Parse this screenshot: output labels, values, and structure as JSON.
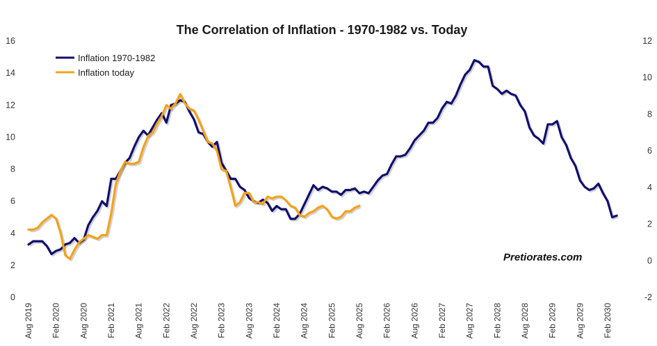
{
  "chart_data": {
    "type": "line",
    "title": "The Correlation of Inflation - 1970-1982 vs. Today",
    "watermark": "Pretiorates.com",
    "x_labels": [
      "Aug 2019",
      "Feb 2020",
      "Aug 2020",
      "Feb 2021",
      "Aug 2021",
      "Feb 2022",
      "Aug 2022",
      "Feb 2023",
      "Aug 2023",
      "Feb 2024",
      "Aug 2024",
      "Feb 2025",
      "Aug 2025",
      "Feb 2026",
      "Aug 2026",
      "Feb 2027",
      "Aug 2027",
      "Feb 2028",
      "Aug 2028",
      "Feb 2029",
      "Aug 2029",
      "Feb 2030"
    ],
    "x_label_months": [
      0,
      6,
      12,
      18,
      24,
      30,
      36,
      42,
      48,
      54,
      60,
      66,
      72,
      78,
      84,
      90,
      96,
      102,
      108,
      114,
      120,
      126
    ],
    "x_range_months": [
      0,
      131
    ],
    "y_left": {
      "min": 0,
      "max": 16,
      "ticks": [
        "0",
        "2",
        "4",
        "6",
        "8",
        "10",
        "12",
        "14",
        "16"
      ],
      "tick_values": [
        0,
        2,
        4,
        6,
        8,
        10,
        12,
        14,
        16
      ]
    },
    "y_right": {
      "min": -2,
      "max": 12,
      "ticks": [
        "-2",
        "0",
        "2",
        "4",
        "6",
        "8",
        "10",
        "12"
      ],
      "tick_values": [
        -2,
        0,
        2,
        4,
        6,
        8,
        10,
        12
      ]
    },
    "legend": {
      "position": "top-left"
    },
    "series": [
      {
        "name": "Inflation 1970-1982",
        "axis": "left",
        "color": "#0f0f6e",
        "points": [
          [
            0,
            3.3
          ],
          [
            1,
            3.5
          ],
          [
            2,
            3.5
          ],
          [
            3,
            3.5
          ],
          [
            4,
            3.2
          ],
          [
            5,
            2.7
          ],
          [
            6,
            2.9
          ],
          [
            7,
            3.0
          ],
          [
            8,
            3.3
          ],
          [
            9,
            3.4
          ],
          [
            10,
            3.7
          ],
          [
            11,
            3.4
          ],
          [
            12,
            3.6
          ],
          [
            13,
            4.5
          ],
          [
            14,
            5.0
          ],
          [
            15,
            5.4
          ],
          [
            16,
            6.0
          ],
          [
            17,
            5.7
          ],
          [
            18,
            7.4
          ],
          [
            19,
            7.4
          ],
          [
            20,
            7.9
          ],
          [
            21,
            8.4
          ],
          [
            22,
            8.7
          ],
          [
            23,
            9.4
          ],
          [
            24,
            10.0
          ],
          [
            25,
            10.4
          ],
          [
            26,
            10.1
          ],
          [
            27,
            10.6
          ],
          [
            28,
            11.1
          ],
          [
            29,
            11.5
          ],
          [
            30,
            10.9
          ],
          [
            31,
            12.0
          ],
          [
            32,
            12.1
          ],
          [
            33,
            12.3
          ],
          [
            34,
            12.2
          ],
          [
            35,
            11.6
          ],
          [
            36,
            11.1
          ],
          [
            37,
            10.3
          ],
          [
            38,
            10.2
          ],
          [
            39,
            9.7
          ],
          [
            40,
            9.4
          ],
          [
            41,
            9.7
          ],
          [
            42,
            8.4
          ],
          [
            43,
            7.9
          ],
          [
            44,
            7.4
          ],
          [
            45,
            7.4
          ],
          [
            46,
            6.9
          ],
          [
            47,
            6.7
          ],
          [
            48,
            6.2
          ],
          [
            49,
            6.0
          ],
          [
            50,
            5.9
          ],
          [
            51,
            6.1
          ],
          [
            52,
            5.9
          ],
          [
            53,
            5.4
          ],
          [
            54,
            5.7
          ],
          [
            55,
            5.5
          ],
          [
            56,
            5.5
          ],
          [
            57,
            4.9
          ],
          [
            58,
            4.9
          ],
          [
            59,
            5.2
          ],
          [
            60,
            5.8
          ],
          [
            61,
            6.4
          ],
          [
            62,
            7.0
          ],
          [
            63,
            6.7
          ],
          [
            64,
            6.9
          ],
          [
            65,
            6.8
          ],
          [
            66,
            6.6
          ],
          [
            67,
            6.6
          ],
          [
            68,
            6.4
          ],
          [
            69,
            6.7
          ],
          [
            70,
            6.7
          ],
          [
            71,
            6.8
          ],
          [
            72,
            6.5
          ],
          [
            73,
            6.6
          ],
          [
            74,
            6.5
          ],
          [
            75,
            6.9
          ],
          [
            76,
            7.3
          ],
          [
            77,
            7.6
          ],
          [
            78,
            7.7
          ],
          [
            79,
            8.3
          ],
          [
            80,
            8.8
          ],
          [
            81,
            8.8
          ],
          [
            82,
            8.9
          ],
          [
            83,
            9.3
          ],
          [
            84,
            9.8
          ],
          [
            85,
            10.1
          ],
          [
            86,
            10.4
          ],
          [
            87,
            10.9
          ],
          [
            88,
            10.9
          ],
          [
            89,
            11.2
          ],
          [
            90,
            11.8
          ],
          [
            91,
            12.2
          ],
          [
            92,
            12.1
          ],
          [
            93,
            12.6
          ],
          [
            94,
            13.3
          ],
          [
            95,
            13.9
          ],
          [
            96,
            14.2
          ],
          [
            97,
            14.8
          ],
          [
            98,
            14.7
          ],
          [
            99,
            14.4
          ],
          [
            100,
            14.4
          ],
          [
            101,
            13.2
          ],
          [
            102,
            13.0
          ],
          [
            103,
            12.7
          ],
          [
            104,
            12.9
          ],
          [
            105,
            12.7
          ],
          [
            106,
            12.6
          ],
          [
            107,
            12.0
          ],
          [
            108,
            11.6
          ],
          [
            109,
            10.6
          ],
          [
            110,
            10.1
          ],
          [
            111,
            9.9
          ],
          [
            112,
            9.6
          ],
          [
            113,
            10.8
          ],
          [
            114,
            10.8
          ],
          [
            115,
            11.0
          ],
          [
            116,
            10.0
          ],
          [
            117,
            9.5
          ],
          [
            118,
            8.7
          ],
          [
            119,
            8.2
          ],
          [
            120,
            7.3
          ],
          [
            121,
            6.9
          ],
          [
            122,
            6.7
          ],
          [
            123,
            6.8
          ],
          [
            124,
            7.1
          ],
          [
            125,
            6.5
          ],
          [
            126,
            6.0
          ],
          [
            127,
            5.0
          ],
          [
            128,
            5.1
          ]
        ]
      },
      {
        "name": "Inflation today",
        "axis": "right",
        "color": "#f4a21a",
        "points": [
          [
            0,
            1.7
          ],
          [
            1,
            1.7
          ],
          [
            2,
            1.8
          ],
          [
            3,
            2.1
          ],
          [
            4,
            2.3
          ],
          [
            5,
            2.5
          ],
          [
            6,
            2.3
          ],
          [
            7,
            1.5
          ],
          [
            8,
            0.3
          ],
          [
            9,
            0.1
          ],
          [
            10,
            0.6
          ],
          [
            11,
            1.0
          ],
          [
            12,
            1.2
          ],
          [
            13,
            1.4
          ],
          [
            14,
            1.3
          ],
          [
            15,
            1.2
          ],
          [
            16,
            1.4
          ],
          [
            17,
            1.4
          ],
          [
            18,
            2.6
          ],
          [
            19,
            4.2
          ],
          [
            20,
            4.9
          ],
          [
            21,
            5.4
          ],
          [
            22,
            5.3
          ],
          [
            23,
            5.3
          ],
          [
            24,
            5.4
          ],
          [
            25,
            6.2
          ],
          [
            26,
            6.8
          ],
          [
            27,
            7.0
          ],
          [
            28,
            7.5
          ],
          [
            29,
            7.9
          ],
          [
            30,
            8.5
          ],
          [
            31,
            8.3
          ],
          [
            32,
            8.6
          ],
          [
            33,
            9.1
          ],
          [
            34,
            8.6
          ],
          [
            35,
            8.3
          ],
          [
            36,
            8.2
          ],
          [
            37,
            7.7
          ],
          [
            38,
            7.1
          ],
          [
            39,
            6.5
          ],
          [
            40,
            6.4
          ],
          [
            41,
            6.0
          ],
          [
            42,
            5.0
          ],
          [
            43,
            4.9
          ],
          [
            44,
            4.0
          ],
          [
            45,
            3.0
          ],
          [
            46,
            3.2
          ],
          [
            47,
            3.7
          ],
          [
            48,
            3.7
          ],
          [
            49,
            3.2
          ],
          [
            50,
            3.2
          ],
          [
            51,
            3.1
          ],
          [
            52,
            3.5
          ],
          [
            53,
            3.4
          ],
          [
            54,
            3.5
          ],
          [
            55,
            3.5
          ],
          [
            56,
            3.3
          ],
          [
            57,
            3.0
          ],
          [
            58,
            2.9
          ],
          [
            59,
            2.5
          ],
          [
            60,
            2.4
          ],
          [
            61,
            2.6
          ],
          [
            62,
            2.7
          ],
          [
            63,
            2.9
          ],
          [
            64,
            3.0
          ],
          [
            65,
            2.8
          ],
          [
            66,
            2.4
          ],
          [
            67,
            2.3
          ],
          [
            68,
            2.4
          ],
          [
            69,
            2.7
          ],
          [
            70,
            2.7
          ],
          [
            71,
            2.9
          ],
          [
            72,
            3.0
          ]
        ]
      }
    ]
  }
}
